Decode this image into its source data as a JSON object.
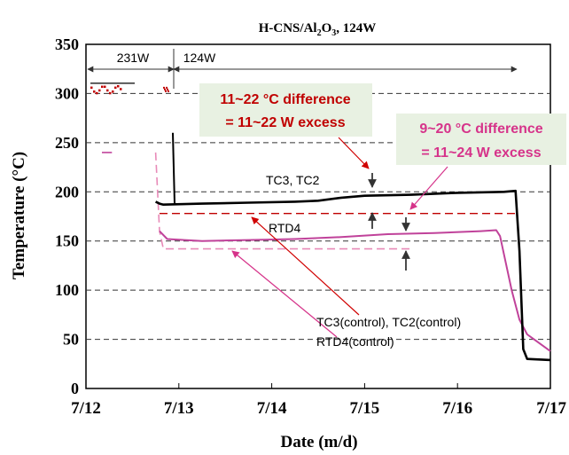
{
  "chart_data": {
    "type": "line",
    "title_main": "H-CNS/Al",
    "title_sub": "2",
    "title_mid": "O",
    "title_sub2": "3",
    "title_tail": ", 124W",
    "xlabel": "Date  (m/d)",
    "ylabel": "Temperature (°C)",
    "xlim": [
      "7/12",
      "7/17"
    ],
    "ylim": [
      0,
      350
    ],
    "x_ticks": [
      "7/12",
      "7/13",
      "7/14",
      "7/15",
      "7/16",
      "7/17"
    ],
    "y_ticks": [
      0,
      50,
      100,
      150,
      200,
      250,
      300,
      350
    ],
    "grid": "horizontal dashed",
    "phases": [
      {
        "label": "231W",
        "x_start": "7/12 00:00",
        "x_end": "7/12 21:00"
      },
      {
        "label": "124W",
        "x_start": "7/12 21:00",
        "x_end": "7/16 22:00"
      }
    ],
    "series": [
      {
        "name": "TC3, TC2",
        "color": "#000000",
        "points": [
          [
            "7/12 18:00",
            190
          ],
          [
            "7/12 19:00",
            188
          ],
          [
            "7/12 20:00",
            187
          ],
          [
            "7/13 06:00",
            188
          ],
          [
            "7/13 18:00",
            189
          ],
          [
            "7/14 06:00",
            190
          ],
          [
            "7/14 12:00",
            191
          ],
          [
            "7/14 18:00",
            194
          ],
          [
            "7/15 00:00",
            196
          ],
          [
            "7/15 12:00",
            197
          ],
          [
            "7/16 00:00",
            199
          ],
          [
            "7/16 12:00",
            200
          ],
          [
            "7/16 15:00",
            201
          ],
          [
            "7/16 16:00",
            140
          ],
          [
            "7/16 17:00",
            40
          ],
          [
            "7/16 18:00",
            30
          ],
          [
            "7/17 00:00",
            29
          ]
        ]
      },
      {
        "name": "RTD4",
        "color": "#c0429a",
        "points": [
          [
            "7/12 19:00",
            160
          ],
          [
            "7/12 21:00",
            152
          ],
          [
            "7/13 06:00",
            150
          ],
          [
            "7/13 18:00",
            151
          ],
          [
            "7/14 06:00",
            152
          ],
          [
            "7/14 18:00",
            154
          ],
          [
            "7/15 06:00",
            157
          ],
          [
            "7/15 18:00",
            158
          ],
          [
            "7/16 06:00",
            160
          ],
          [
            "7/16 10:00",
            161
          ],
          [
            "7/16 11:00",
            155
          ],
          [
            "7/16 14:00",
            100
          ],
          [
            "7/16 16:00",
            70
          ],
          [
            "7/16 18:00",
            55
          ],
          [
            "7/17 00:00",
            38
          ]
        ]
      },
      {
        "name": "TC3(control), TC2(control)",
        "color": "#c00000",
        "points": [
          [
            "7/12 19:00",
            178
          ],
          [
            "7/16 15:00",
            178
          ]
        ]
      },
      {
        "name": "RTD4(control)",
        "color": "#e88ab8",
        "points": [
          [
            "7/12 18:00",
            240
          ],
          [
            "7/12 19:00",
            160
          ],
          [
            "7/12 20:00",
            142
          ],
          [
            "7/15 12:00",
            142
          ]
        ]
      }
    ],
    "pre_segments": [
      {
        "name": "TC3, TC2",
        "color": "#c00000",
        "y": 305,
        "x_start": "7/12 00:00",
        "x_end": "7/12 09:00"
      },
      {
        "name": "RTD4",
        "color": "#c0429a",
        "y": 240,
        "x_start": "7/12 00:00",
        "x_end": "7/12 09:00"
      }
    ],
    "annotations": [
      {
        "text_line1": "11~22 °C difference",
        "text_line2": "= 11~22 W excess",
        "color": "#c00000",
        "bg": "#e8f1e2"
      },
      {
        "text_line1": "9~20 °C difference",
        "text_line2": "= 11~24 W excess",
        "color": "#d6338a",
        "bg": "#e8f1e2"
      },
      {
        "text": "TC3, TC2"
      },
      {
        "text": "RTD4"
      },
      {
        "text": "TC3(control), TC2(control)"
      },
      {
        "text": "RTD4(control)"
      }
    ]
  }
}
